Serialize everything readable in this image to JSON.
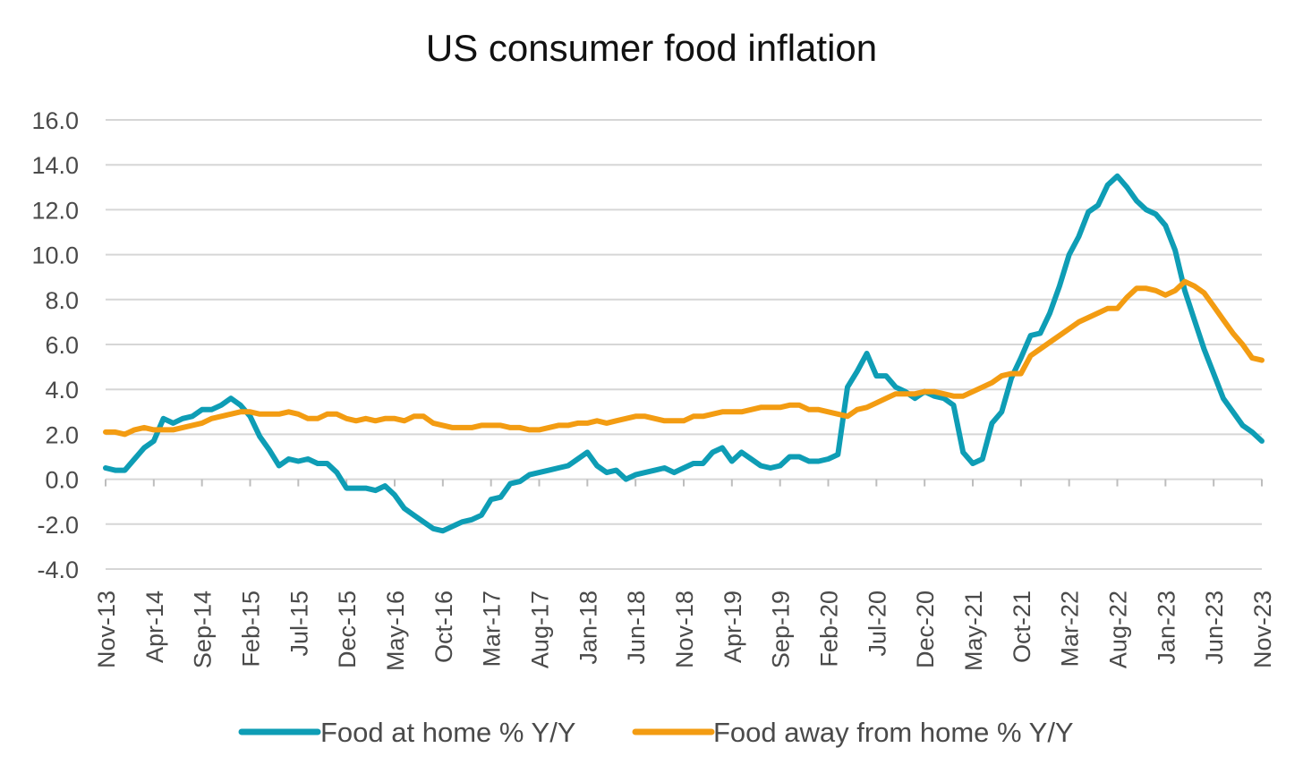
{
  "chart_data": {
    "type": "line",
    "title": "US consumer food inflation",
    "xlabel": "",
    "ylabel": "",
    "ylim": [
      -4.0,
      16.0
    ],
    "yticks": [
      -4.0,
      -2.0,
      0.0,
      2.0,
      4.0,
      6.0,
      8.0,
      10.0,
      12.0,
      14.0,
      16.0
    ],
    "ytick_labels": [
      "-4.0",
      "-2.0",
      "0.0",
      "2.0",
      "4.0",
      "6.0",
      "8.0",
      "10.0",
      "12.0",
      "14.0",
      "16.0"
    ],
    "x_tick_labels": [
      "Nov-13",
      "Apr-14",
      "Sep-14",
      "Feb-15",
      "Jul-15",
      "Dec-15",
      "May-16",
      "Oct-16",
      "Mar-17",
      "Aug-17",
      "Jan-18",
      "Jun-18",
      "Nov-18",
      "Apr-19",
      "Sep-19",
      "Feb-20",
      "Jul-20",
      "Dec-20",
      "May-21",
      "Oct-21",
      "Mar-22",
      "Aug-22",
      "Jan-23",
      "Jun-23",
      "Nov-23"
    ],
    "x_start": "Nov-13",
    "x_end": "Nov-23",
    "grid": true,
    "legend_position": "bottom",
    "series": [
      {
        "name": "Food at home % Y/Y",
        "color": "#0e9db5",
        "points": [
          [
            "Nov-13",
            0.5
          ],
          [
            "Dec-13",
            0.4
          ],
          [
            "Jan-14",
            0.4
          ],
          [
            "Feb-14",
            0.9
          ],
          [
            "Mar-14",
            1.4
          ],
          [
            "Apr-14",
            1.7
          ],
          [
            "May-14",
            2.7
          ],
          [
            "Jun-14",
            2.5
          ],
          [
            "Jul-14",
            2.7
          ],
          [
            "Aug-14",
            2.8
          ],
          [
            "Sep-14",
            3.1
          ],
          [
            "Oct-14",
            3.1
          ],
          [
            "Nov-14",
            3.3
          ],
          [
            "Dec-14",
            3.6
          ],
          [
            "Jan-15",
            3.3
          ],
          [
            "Feb-15",
            2.8
          ],
          [
            "Mar-15",
            1.9
          ],
          [
            "Apr-15",
            1.3
          ],
          [
            "May-15",
            0.6
          ],
          [
            "Jun-15",
            0.9
          ],
          [
            "Jul-15",
            0.8
          ],
          [
            "Aug-15",
            0.9
          ],
          [
            "Sep-15",
            0.7
          ],
          [
            "Oct-15",
            0.7
          ],
          [
            "Nov-15",
            0.3
          ],
          [
            "Dec-15",
            -0.4
          ],
          [
            "Jan-16",
            -0.4
          ],
          [
            "Feb-16",
            -0.4
          ],
          [
            "Mar-16",
            -0.5
          ],
          [
            "Apr-16",
            -0.3
          ],
          [
            "May-16",
            -0.7
          ],
          [
            "Jun-16",
            -1.3
          ],
          [
            "Jul-16",
            -1.6
          ],
          [
            "Aug-16",
            -1.9
          ],
          [
            "Sep-16",
            -2.2
          ],
          [
            "Oct-16",
            -2.3
          ],
          [
            "Nov-16",
            -2.1
          ],
          [
            "Dec-16",
            -1.9
          ],
          [
            "Jan-17",
            -1.8
          ],
          [
            "Feb-17",
            -1.6
          ],
          [
            "Mar-17",
            -0.9
          ],
          [
            "Apr-17",
            -0.8
          ],
          [
            "May-17",
            -0.2
          ],
          [
            "Jun-17",
            -0.1
          ],
          [
            "Jul-17",
            0.2
          ],
          [
            "Aug-17",
            0.3
          ],
          [
            "Sep-17",
            0.4
          ],
          [
            "Oct-17",
            0.5
          ],
          [
            "Nov-17",
            0.6
          ],
          [
            "Dec-17",
            0.9
          ],
          [
            "Jan-18",
            1.2
          ],
          [
            "Feb-18",
            0.6
          ],
          [
            "Mar-18",
            0.3
          ],
          [
            "Apr-18",
            0.4
          ],
          [
            "May-18",
            0.0
          ],
          [
            "Jun-18",
            0.2
          ],
          [
            "Jul-18",
            0.3
          ],
          [
            "Aug-18",
            0.4
          ],
          [
            "Sep-18",
            0.5
          ],
          [
            "Oct-18",
            0.3
          ],
          [
            "Nov-18",
            0.5
          ],
          [
            "Dec-18",
            0.7
          ],
          [
            "Jan-19",
            0.7
          ],
          [
            "Feb-19",
            1.2
          ],
          [
            "Mar-19",
            1.4
          ],
          [
            "Apr-19",
            0.8
          ],
          [
            "May-19",
            1.2
          ],
          [
            "Jun-19",
            0.9
          ],
          [
            "Jul-19",
            0.6
          ],
          [
            "Aug-19",
            0.5
          ],
          [
            "Sep-19",
            0.6
          ],
          [
            "Oct-19",
            1.0
          ],
          [
            "Nov-19",
            1.0
          ],
          [
            "Dec-19",
            0.8
          ],
          [
            "Jan-20",
            0.8
          ],
          [
            "Feb-20",
            0.9
          ],
          [
            "Mar-20",
            1.1
          ],
          [
            "Apr-20",
            4.1
          ],
          [
            "May-20",
            4.8
          ],
          [
            "Jun-20",
            5.6
          ],
          [
            "Jul-20",
            4.6
          ],
          [
            "Aug-20",
            4.6
          ],
          [
            "Sep-20",
            4.1
          ],
          [
            "Oct-20",
            3.9
          ],
          [
            "Nov-20",
            3.6
          ],
          [
            "Dec-20",
            3.9
          ],
          [
            "Jan-21",
            3.7
          ],
          [
            "Feb-21",
            3.6
          ],
          [
            "Mar-21",
            3.3
          ],
          [
            "Apr-21",
            1.2
          ],
          [
            "May-21",
            0.7
          ],
          [
            "Jun-21",
            0.9
          ],
          [
            "Jul-21",
            2.5
          ],
          [
            "Aug-21",
            3.0
          ],
          [
            "Sep-21",
            4.5
          ],
          [
            "Oct-21",
            5.4
          ],
          [
            "Nov-21",
            6.4
          ],
          [
            "Dec-21",
            6.5
          ],
          [
            "Jan-22",
            7.4
          ],
          [
            "Feb-22",
            8.6
          ],
          [
            "Mar-22",
            10.0
          ],
          [
            "Apr-22",
            10.8
          ],
          [
            "May-22",
            11.9
          ],
          [
            "Jun-22",
            12.2
          ],
          [
            "Jul-22",
            13.1
          ],
          [
            "Aug-22",
            13.5
          ],
          [
            "Sep-22",
            13.0
          ],
          [
            "Oct-22",
            12.4
          ],
          [
            "Nov-22",
            12.0
          ],
          [
            "Dec-22",
            11.8
          ],
          [
            "Jan-23",
            11.3
          ],
          [
            "Feb-23",
            10.2
          ],
          [
            "Mar-23",
            8.4
          ],
          [
            "Apr-23",
            7.1
          ],
          [
            "May-23",
            5.8
          ],
          [
            "Jun-23",
            4.7
          ],
          [
            "Jul-23",
            3.6
          ],
          [
            "Aug-23",
            3.0
          ],
          [
            "Sep-23",
            2.4
          ],
          [
            "Oct-23",
            2.1
          ],
          [
            "Nov-23",
            1.7
          ]
        ]
      },
      {
        "name": "Food away from home % Y/Y",
        "color": "#f39c12",
        "points": [
          [
            "Nov-13",
            2.1
          ],
          [
            "Dec-13",
            2.1
          ],
          [
            "Jan-14",
            2.0
          ],
          [
            "Feb-14",
            2.2
          ],
          [
            "Mar-14",
            2.3
          ],
          [
            "Apr-14",
            2.2
          ],
          [
            "May-14",
            2.2
          ],
          [
            "Jun-14",
            2.2
          ],
          [
            "Jul-14",
            2.3
          ],
          [
            "Aug-14",
            2.4
          ],
          [
            "Sep-14",
            2.5
          ],
          [
            "Oct-14",
            2.7
          ],
          [
            "Nov-14",
            2.8
          ],
          [
            "Dec-14",
            2.9
          ],
          [
            "Jan-15",
            3.0
          ],
          [
            "Feb-15",
            3.0
          ],
          [
            "Mar-15",
            2.9
          ],
          [
            "Apr-15",
            2.9
          ],
          [
            "May-15",
            2.9
          ],
          [
            "Jun-15",
            3.0
          ],
          [
            "Jul-15",
            2.9
          ],
          [
            "Aug-15",
            2.7
          ],
          [
            "Sep-15",
            2.7
          ],
          [
            "Oct-15",
            2.9
          ],
          [
            "Nov-15",
            2.9
          ],
          [
            "Dec-15",
            2.7
          ],
          [
            "Jan-16",
            2.6
          ],
          [
            "Feb-16",
            2.7
          ],
          [
            "Mar-16",
            2.6
          ],
          [
            "Apr-16",
            2.7
          ],
          [
            "May-16",
            2.7
          ],
          [
            "Jun-16",
            2.6
          ],
          [
            "Jul-16",
            2.8
          ],
          [
            "Aug-16",
            2.8
          ],
          [
            "Sep-16",
            2.5
          ],
          [
            "Oct-16",
            2.4
          ],
          [
            "Nov-16",
            2.3
          ],
          [
            "Dec-16",
            2.3
          ],
          [
            "Jan-17",
            2.3
          ],
          [
            "Feb-17",
            2.4
          ],
          [
            "Mar-17",
            2.4
          ],
          [
            "Apr-17",
            2.4
          ],
          [
            "May-17",
            2.3
          ],
          [
            "Jun-17",
            2.3
          ],
          [
            "Jul-17",
            2.2
          ],
          [
            "Aug-17",
            2.2
          ],
          [
            "Sep-17",
            2.3
          ],
          [
            "Oct-17",
            2.4
          ],
          [
            "Nov-17",
            2.4
          ],
          [
            "Dec-17",
            2.5
          ],
          [
            "Jan-18",
            2.5
          ],
          [
            "Feb-18",
            2.6
          ],
          [
            "Mar-18",
            2.5
          ],
          [
            "Apr-18",
            2.6
          ],
          [
            "May-18",
            2.7
          ],
          [
            "Jun-18",
            2.8
          ],
          [
            "Jul-18",
            2.8
          ],
          [
            "Aug-18",
            2.7
          ],
          [
            "Sep-18",
            2.6
          ],
          [
            "Oct-18",
            2.6
          ],
          [
            "Nov-18",
            2.6
          ],
          [
            "Dec-18",
            2.8
          ],
          [
            "Jan-19",
            2.8
          ],
          [
            "Feb-19",
            2.9
          ],
          [
            "Mar-19",
            3.0
          ],
          [
            "Apr-19",
            3.0
          ],
          [
            "May-19",
            3.0
          ],
          [
            "Jun-19",
            3.1
          ],
          [
            "Jul-19",
            3.2
          ],
          [
            "Aug-19",
            3.2
          ],
          [
            "Sep-19",
            3.2
          ],
          [
            "Oct-19",
            3.3
          ],
          [
            "Nov-19",
            3.3
          ],
          [
            "Dec-19",
            3.1
          ],
          [
            "Jan-20",
            3.1
          ],
          [
            "Feb-20",
            3.0
          ],
          [
            "Mar-20",
            2.9
          ],
          [
            "Apr-20",
            2.8
          ],
          [
            "May-20",
            3.1
          ],
          [
            "Jun-20",
            3.2
          ],
          [
            "Jul-20",
            3.4
          ],
          [
            "Aug-20",
            3.6
          ],
          [
            "Sep-20",
            3.8
          ],
          [
            "Oct-20",
            3.8
          ],
          [
            "Nov-20",
            3.8
          ],
          [
            "Dec-20",
            3.9
          ],
          [
            "Jan-21",
            3.9
          ],
          [
            "Feb-21",
            3.8
          ],
          [
            "Mar-21",
            3.7
          ],
          [
            "Apr-21",
            3.7
          ],
          [
            "May-21",
            3.9
          ],
          [
            "Jun-21",
            4.1
          ],
          [
            "Jul-21",
            4.3
          ],
          [
            "Aug-21",
            4.6
          ],
          [
            "Sep-21",
            4.7
          ],
          [
            "Oct-21",
            4.7
          ],
          [
            "Nov-21",
            5.5
          ],
          [
            "Dec-21",
            5.8
          ],
          [
            "Jan-22",
            6.1
          ],
          [
            "Feb-22",
            6.4
          ],
          [
            "Mar-22",
            6.7
          ],
          [
            "Apr-22",
            7.0
          ],
          [
            "May-22",
            7.2
          ],
          [
            "Jun-22",
            7.4
          ],
          [
            "Jul-22",
            7.6
          ],
          [
            "Aug-22",
            7.6
          ],
          [
            "Sep-22",
            8.1
          ],
          [
            "Oct-22",
            8.5
          ],
          [
            "Nov-22",
            8.5
          ],
          [
            "Dec-22",
            8.4
          ],
          [
            "Jan-23",
            8.2
          ],
          [
            "Feb-23",
            8.4
          ],
          [
            "Mar-23",
            8.8
          ],
          [
            "Apr-23",
            8.6
          ],
          [
            "May-23",
            8.3
          ],
          [
            "Jun-23",
            7.7
          ],
          [
            "Jul-23",
            7.1
          ],
          [
            "Aug-23",
            6.5
          ],
          [
            "Sep-23",
            6.0
          ],
          [
            "Oct-23",
            5.4
          ],
          [
            "Nov-23",
            5.3
          ]
        ]
      }
    ]
  }
}
